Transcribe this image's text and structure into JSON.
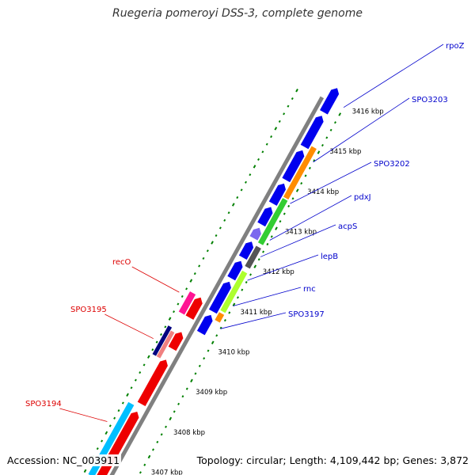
{
  "title": "Ruegeria pomeroyi DSS-3, complete genome",
  "footer": {
    "accession": "Accession: NC_003911",
    "topology": "Topology: circular; Length: 4,109,442 bp; Genes: 3,872"
  },
  "colors": {
    "backbone": "#808080",
    "tick_dots": "#008000",
    "plus_label": "#0000cc",
    "minus_label": "#dd0000",
    "ruler_text": "#000000"
  },
  "ruler": [
    "3407 kbp",
    "3408 kbp",
    "3409 kbp",
    "3410 kbp",
    "3411 kbp",
    "3412 kbp",
    "3413 kbp",
    "3414 kbp",
    "3415 kbp",
    "3416 kbp"
  ],
  "plus_labels": [
    "rpoZ",
    "SPO3203",
    "SPO3202",
    "pdxJ",
    "acpS",
    "lepB",
    "rnc",
    "SPO3197"
  ],
  "minus_labels": [
    "recO",
    "SPO3195",
    "SPO3194"
  ],
  "plus_genes": [
    {
      "color": "#0000ee"
    },
    {
      "color": "#0000ee"
    },
    {
      "color": "#0000ee"
    },
    {
      "color": "#0000ee"
    },
    {
      "color": "#7b68ee"
    },
    {
      "color": "#0000ee"
    },
    {
      "color": "#0000ee"
    },
    {
      "color": "#0000ee"
    },
    {
      "color": "#0000ee"
    },
    {
      "color": "#0000ee"
    }
  ],
  "minus_genes": [
    {
      "color": "#ee0000"
    },
    {
      "color": "#ee0000"
    },
    {
      "color": "#ee0000"
    },
    {
      "color": "#ee0000"
    }
  ],
  "inner_plus_features": [
    {
      "color": "#ff8c00"
    },
    {
      "color": "#32cd32"
    },
    {
      "color": "#555555"
    },
    {
      "color": "#adff2f"
    },
    {
      "color": "#ff8c00"
    }
  ],
  "inner_minus_features": [
    {
      "color": "#ff1493"
    },
    {
      "color": "#000080"
    },
    {
      "color": "#f08080"
    },
    {
      "color": "#00bfff"
    }
  ]
}
